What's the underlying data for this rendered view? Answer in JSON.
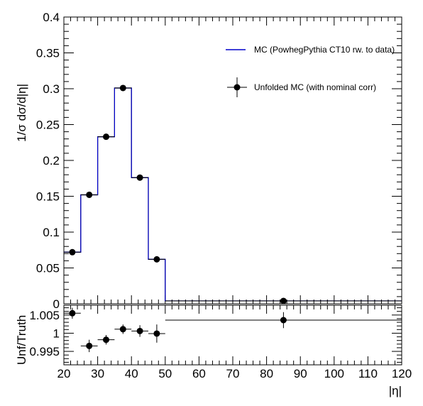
{
  "chart_data": [
    {
      "type": "line",
      "panel": "main",
      "ylabel": "1/σ dσ/d|η|",
      "xlim": [
        20,
        120
      ],
      "ylim": [
        0,
        0.4
      ],
      "bin_edges": [
        20,
        25,
        30,
        35,
        40,
        45,
        50,
        120
      ],
      "series": [
        {
          "name": "MC (PowhegPythia CT10 rw. to data)",
          "color": "#0000cc",
          "style": "step",
          "values": [
            0.072,
            0.152,
            0.233,
            0.301,
            0.176,
            0.062,
            0.004
          ]
        },
        {
          "name": "Unfolded MC (with nominal corr)",
          "color": "#000000",
          "style": "points",
          "x": [
            22.5,
            27.5,
            32.5,
            37.5,
            42.5,
            47.5,
            85
          ],
          "values": [
            0.072,
            0.152,
            0.233,
            0.301,
            0.176,
            0.062,
            0.004
          ]
        }
      ],
      "yticks": [
        "0",
        "0.05",
        "0.1",
        "0.15",
        "0.2",
        "0.25",
        "0.3",
        "0.35",
        "0.4"
      ],
      "ytick_values": [
        0,
        0.05,
        0.1,
        0.15,
        0.2,
        0.25,
        0.3,
        0.35,
        0.4
      ],
      "legend_position": "top-right"
    },
    {
      "type": "scatter",
      "panel": "ratio",
      "ylabel": "Unf/Truth",
      "xlabel": "|η|",
      "xlim": [
        20,
        120
      ],
      "ylim": [
        0.9913,
        1.0077
      ],
      "reference_line": 1.0,
      "bin_edges": [
        20,
        25,
        30,
        35,
        40,
        45,
        50,
        120
      ],
      "series": [
        {
          "color": "#000000",
          "x": [
            22.5,
            27.5,
            32.5,
            37.5,
            42.5,
            47.5,
            85
          ],
          "values": [
            1.0055,
            0.9965,
            0.9982,
            1.0011,
            1.0006,
            0.9999,
            1.0036
          ],
          "yerr": [
            0.0015,
            0.0017,
            0.0013,
            0.0013,
            0.0016,
            0.0025,
            0.0022
          ]
        }
      ],
      "yticks": [
        "0.995",
        "1",
        "1.005"
      ],
      "ytick_values": [
        0.995,
        1.0,
        1.005
      ],
      "xticks": [
        "20",
        "30",
        "40",
        "50",
        "60",
        "70",
        "80",
        "90",
        "100",
        "110",
        "120"
      ],
      "xtick_values": [
        20,
        30,
        40,
        50,
        60,
        70,
        80,
        90,
        100,
        110,
        120
      ]
    }
  ]
}
